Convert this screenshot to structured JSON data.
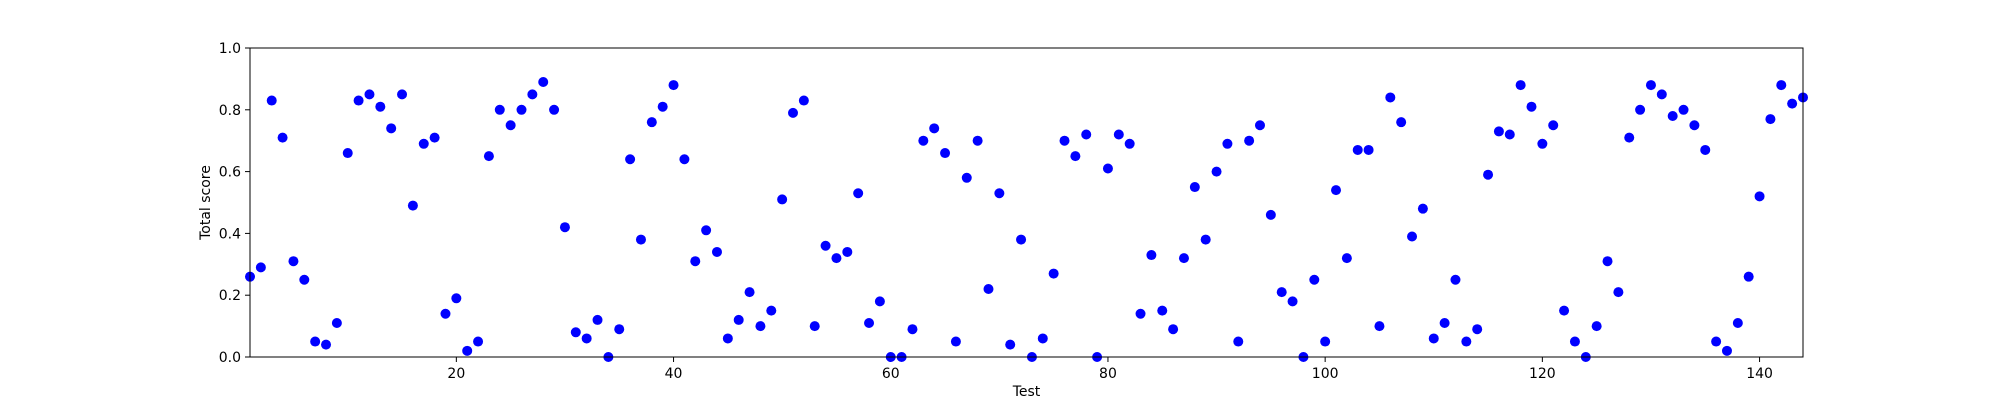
{
  "chart_data": {
    "type": "scatter",
    "title": "",
    "xlabel": "Test",
    "ylabel": "Total score",
    "xlim": [
      1,
      144
    ],
    "ylim": [
      0,
      1
    ],
    "xticks": [
      20,
      40,
      60,
      80,
      100,
      120,
      140
    ],
    "yticks": [
      0.0,
      0.2,
      0.4,
      0.6,
      0.8,
      1.0
    ],
    "ytick_labels": [
      "0.0",
      "0.2",
      "0.4",
      "0.6",
      "0.8",
      "1.0"
    ],
    "grid": false,
    "marker_color": "#0000ff",
    "series": [
      {
        "x": [
          1,
          2,
          3,
          4,
          5,
          6,
          7,
          8,
          9,
          10,
          11,
          12,
          13,
          14,
          15,
          16,
          17,
          18,
          19,
          20,
          21,
          22,
          23,
          24,
          25,
          26,
          27,
          28,
          29,
          30,
          31,
          32,
          33,
          34,
          35,
          36,
          37,
          38,
          39,
          40,
          41,
          42,
          43,
          44,
          45,
          46,
          47,
          48,
          49,
          50,
          51,
          52,
          53,
          54,
          55,
          56,
          57,
          58,
          59,
          60,
          61,
          62,
          63,
          64,
          65,
          66,
          67,
          68,
          69,
          70,
          71,
          72,
          73,
          74,
          75,
          76,
          77,
          78,
          79,
          80,
          81,
          82,
          83,
          84,
          85,
          86,
          87,
          88,
          89,
          90,
          91,
          92,
          93,
          94,
          95,
          96,
          97,
          98,
          99,
          100,
          101,
          102,
          103,
          104,
          105,
          106,
          107,
          108,
          109,
          110,
          111,
          112,
          113,
          114,
          115,
          116,
          117,
          118,
          119,
          120,
          121,
          122,
          123,
          124,
          125,
          126,
          127,
          128,
          129,
          130,
          131,
          132,
          133,
          134,
          135,
          136,
          137,
          138,
          139,
          140,
          141,
          142,
          143,
          144
        ],
        "y": [
          0.26,
          0.29,
          0.83,
          0.71,
          0.31,
          0.25,
          0.05,
          0.04,
          0.11,
          0.66,
          0.83,
          0.85,
          0.81,
          0.74,
          0.85,
          0.49,
          0.69,
          0.71,
          0.14,
          0.19,
          0.02,
          0.05,
          0.65,
          0.8,
          0.75,
          0.8,
          0.85,
          0.89,
          0.8,
          0.42,
          0.08,
          0.06,
          0.12,
          0.0,
          0.09,
          0.64,
          0.38,
          0.76,
          0.81,
          0.88,
          0.64,
          0.31,
          0.41,
          0.34,
          0.06,
          0.12,
          0.21,
          0.1,
          0.15,
          0.51,
          0.79,
          0.83,
          0.1,
          0.36,
          0.32,
          0.34,
          0.53,
          0.11,
          0.18,
          0.0,
          0.0,
          0.09,
          0.7,
          0.74,
          0.66,
          0.05,
          0.58,
          0.7,
          0.22,
          0.53,
          0.04,
          0.38,
          0.0,
          0.06,
          0.27,
          0.7,
          0.65,
          0.72,
          0.0,
          0.61,
          0.72,
          0.69,
          0.14,
          0.33,
          0.15,
          0.09,
          0.32,
          0.55,
          0.38,
          0.6,
          0.69,
          0.05,
          0.7,
          0.75,
          0.46,
          0.21,
          0.18,
          0.0,
          0.25,
          0.05,
          0.54,
          0.32,
          0.67,
          0.67,
          0.1,
          0.84,
          0.76,
          0.39,
          0.48,
          0.06,
          0.11,
          0.25,
          0.05,
          0.09,
          0.59,
          0.73,
          0.72,
          0.88,
          0.81,
          0.69,
          0.75,
          0.15,
          0.05,
          0.0,
          0.1,
          0.31,
          0.21,
          0.71,
          0.8,
          0.88,
          0.85,
          0.78,
          0.8,
          0.75,
          0.67,
          0.05,
          0.02,
          0.11,
          0.26,
          0.52,
          0.77,
          0.88,
          0.82,
          0.84
        ]
      }
    ]
  }
}
